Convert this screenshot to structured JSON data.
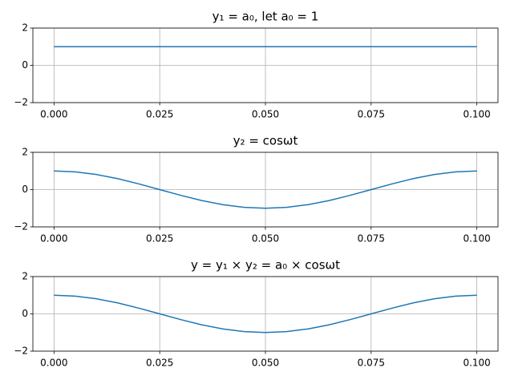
{
  "chart_data": [
    {
      "type": "line",
      "title": "y₁ = a₀, let a₀ = 1",
      "x": [
        0,
        0.1
      ],
      "series": [
        {
          "color": "#1f77b4",
          "values": [
            1,
            1
          ]
        }
      ],
      "xlim": [
        -0.005,
        0.105
      ],
      "ylim": [
        -2,
        2
      ],
      "xticks": [
        {
          "value": 0,
          "label": "0.000"
        },
        {
          "value": 0.025,
          "label": "0.025"
        },
        {
          "value": 0.05,
          "label": "0.050"
        },
        {
          "value": 0.075,
          "label": "0.075"
        },
        {
          "value": 0.1,
          "label": "0.100"
        }
      ],
      "yticks": [
        {
          "value": -2,
          "label": "−2"
        },
        0,
        2
      ],
      "grid": true
    },
    {
      "type": "line",
      "title": "y₂ = cosωt",
      "x": [
        0,
        0.005,
        0.01,
        0.015,
        0.02,
        0.025,
        0.03,
        0.035,
        0.04,
        0.045,
        0.05,
        0.055,
        0.06,
        0.065,
        0.07,
        0.075,
        0.08,
        0.085,
        0.09,
        0.095,
        0.1
      ],
      "series": [
        {
          "color": "#1f77b4",
          "values": [
            1,
            0.95,
            0.81,
            0.59,
            0.31,
            0,
            -0.31,
            -0.59,
            -0.81,
            -0.95,
            -1,
            -0.95,
            -0.81,
            -0.59,
            -0.31,
            0,
            0.31,
            0.59,
            0.81,
            0.95,
            1
          ]
        }
      ],
      "xlim": [
        -0.005,
        0.105
      ],
      "ylim": [
        -2,
        2
      ],
      "xticks": [
        {
          "value": 0,
          "label": "0.000"
        },
        {
          "value": 0.025,
          "label": "0.025"
        },
        {
          "value": 0.05,
          "label": "0.050"
        },
        {
          "value": 0.075,
          "label": "0.075"
        },
        {
          "value": 0.1,
          "label": "0.100"
        }
      ],
      "yticks": [
        {
          "value": -2,
          "label": "−2"
        },
        0,
        2
      ],
      "grid": true
    },
    {
      "type": "line",
      "title": "y = y₁ × y₂ = a₀ × cosωt",
      "x": [
        0,
        0.005,
        0.01,
        0.015,
        0.02,
        0.025,
        0.03,
        0.035,
        0.04,
        0.045,
        0.05,
        0.055,
        0.06,
        0.065,
        0.07,
        0.075,
        0.08,
        0.085,
        0.09,
        0.095,
        0.1
      ],
      "series": [
        {
          "color": "#1f77b4",
          "values": [
            1,
            0.95,
            0.81,
            0.59,
            0.31,
            0,
            -0.31,
            -0.59,
            -0.81,
            -0.95,
            -1,
            -0.95,
            -0.81,
            -0.59,
            -0.31,
            0,
            0.31,
            0.59,
            0.81,
            0.95,
            1
          ]
        }
      ],
      "xlim": [
        -0.005,
        0.105
      ],
      "ylim": [
        -2,
        2
      ],
      "xticks": [
        {
          "value": 0,
          "label": "0.000"
        },
        {
          "value": 0.025,
          "label": "0.025"
        },
        {
          "value": 0.05,
          "label": "0.050"
        },
        {
          "value": 0.075,
          "label": "0.075"
        },
        {
          "value": 0.1,
          "label": "0.100"
        }
      ],
      "yticks": [
        {
          "value": -2,
          "label": "−2"
        },
        0,
        2
      ],
      "grid": true
    }
  ]
}
